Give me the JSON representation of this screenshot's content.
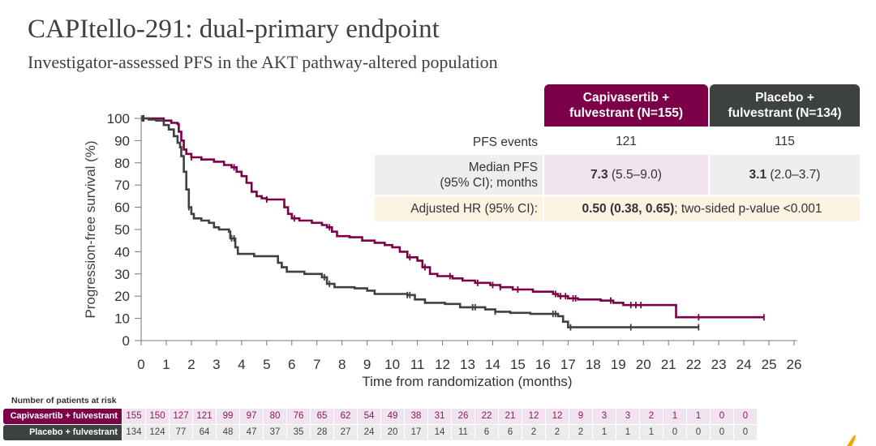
{
  "slide": {
    "title": "CAPItello-291: dual-primary endpoint",
    "subtitle": "Investigator-assessed PFS in the AKT pathway-altered population"
  },
  "colors": {
    "capivasertib": "#7b0047",
    "placebo": "#3d4140",
    "cap_tint": "#f2e4ee",
    "plc_tint": "#eeeeee",
    "hr_tint": "#fdf3e2",
    "accent_logo": "#f0a800"
  },
  "summary_table": {
    "headers": {
      "capivasertib": "Capivasertib + fulvestrant (N=155)",
      "capivasertib_line1": "Capivasertib +",
      "capivasertib_line2": "fulvestrant (N=155)",
      "placebo_line1": "Placebo +",
      "placebo_line2": "fulvestrant (N=134)"
    },
    "rows": {
      "pfs_events": {
        "label": "PFS events",
        "capivasertib": "121",
        "placebo": "115"
      },
      "median_pfs": {
        "label_line1": "Median PFS",
        "label_line2": "(95% CI); months",
        "capivasertib_bold": "7.3",
        "capivasertib_ci": " (5.5–9.0)",
        "placebo_bold": "3.1",
        "placebo_ci": " (2.0–3.7)"
      },
      "hazard_ratio": {
        "label": "Adjusted HR (95% CI):",
        "value_bold": "0.50 (0.38, 0.65)",
        "value_rest": "; two-sided p-value <0.001"
      }
    }
  },
  "at_risk": {
    "title": "Number of patients at risk",
    "capivasertib_label": "Capivasertib + fulvestrant",
    "placebo_label": "Placebo + fulvestrant",
    "capivasertib": [
      155,
      150,
      127,
      121,
      99,
      97,
      80,
      76,
      65,
      62,
      54,
      49,
      38,
      31,
      26,
      22,
      21,
      12,
      12,
      9,
      3,
      3,
      2,
      1,
      1,
      0,
      0
    ],
    "placebo": [
      134,
      124,
      77,
      64,
      48,
      47,
      37,
      35,
      28,
      27,
      24,
      20,
      17,
      14,
      11,
      6,
      6,
      2,
      2,
      2,
      1,
      1,
      1,
      0,
      0,
      0,
      0
    ]
  },
  "chart_data": {
    "type": "line",
    "subtype": "kaplan-meier step",
    "title": "",
    "xlabel": "Time from randomization (months)",
    "ylabel": "Progression-free survival (%)",
    "xlim": [
      0,
      26
    ],
    "ylim": [
      0,
      100
    ],
    "xticks": [
      0,
      1,
      2,
      3,
      4,
      5,
      6,
      7,
      8,
      9,
      10,
      11,
      12,
      13,
      14,
      15,
      16,
      17,
      18,
      19,
      20,
      21,
      22,
      23,
      24,
      25,
      26
    ],
    "yticks": [
      0,
      10,
      20,
      30,
      40,
      50,
      60,
      70,
      80,
      90,
      100
    ],
    "grid": false,
    "series": [
      {
        "name": "Capivasertib + fulvestrant",
        "color": "#7b0047",
        "points": [
          [
            0,
            100
          ],
          [
            0.6,
            100
          ],
          [
            0.9,
            99
          ],
          [
            1.2,
            98
          ],
          [
            1.45,
            97.5
          ],
          [
            1.5,
            94
          ],
          [
            1.6,
            90
          ],
          [
            1.7,
            86
          ],
          [
            1.8,
            84
          ],
          [
            2.0,
            82.5
          ],
          [
            2.4,
            81.5
          ],
          [
            2.9,
            80.5
          ],
          [
            3.3,
            79
          ],
          [
            3.6,
            78
          ],
          [
            3.8,
            76
          ],
          [
            4.0,
            74
          ],
          [
            4.2,
            71
          ],
          [
            4.4,
            67
          ],
          [
            4.6,
            65
          ],
          [
            4.8,
            64
          ],
          [
            5.0,
            63.5
          ],
          [
            5.6,
            63.5
          ],
          [
            5.7,
            60
          ],
          [
            5.85,
            57
          ],
          [
            6.0,
            55
          ],
          [
            6.3,
            54
          ],
          [
            6.8,
            53
          ],
          [
            7.2,
            52
          ],
          [
            7.4,
            51
          ],
          [
            7.6,
            49
          ],
          [
            7.8,
            47
          ],
          [
            8.3,
            46.5
          ],
          [
            8.8,
            45
          ],
          [
            9.3,
            44
          ],
          [
            9.7,
            43
          ],
          [
            10.0,
            42
          ],
          [
            10.3,
            40
          ],
          [
            10.6,
            37.5
          ],
          [
            11.0,
            36
          ],
          [
            11.2,
            33
          ],
          [
            11.5,
            30
          ],
          [
            11.8,
            29
          ],
          [
            12.4,
            28
          ],
          [
            12.8,
            27
          ],
          [
            13.3,
            26
          ],
          [
            13.9,
            25
          ],
          [
            14.3,
            24
          ],
          [
            14.8,
            23
          ],
          [
            15.6,
            22
          ],
          [
            16.4,
            21
          ],
          [
            16.6,
            20
          ],
          [
            17.0,
            19
          ],
          [
            17.4,
            18.5
          ],
          [
            18.3,
            18
          ],
          [
            18.8,
            17
          ],
          [
            19.2,
            16
          ],
          [
            20.0,
            16
          ],
          [
            21.3,
            16
          ],
          [
            21.3,
            10.5
          ],
          [
            24.8,
            10.5
          ]
        ],
        "censor_times": [
          0.1,
          2.0,
          3.7,
          5.0,
          6.1,
          7.5,
          10.7,
          11.3,
          12.3,
          13.4,
          14.0,
          14.3,
          15.0,
          16.5,
          16.7,
          16.9,
          17.2,
          17.3,
          18.7,
          19.5,
          19.7,
          19.9,
          22.2,
          24.8
        ]
      },
      {
        "name": "Placebo + fulvestrant",
        "color": "#3d4140",
        "points": [
          [
            0,
            100
          ],
          [
            0.3,
            99.5
          ],
          [
            0.6,
            99
          ],
          [
            0.9,
            97
          ],
          [
            1.1,
            95
          ],
          [
            1.3,
            92
          ],
          [
            1.45,
            89
          ],
          [
            1.55,
            87
          ],
          [
            1.6,
            83
          ],
          [
            1.7,
            76
          ],
          [
            1.8,
            68
          ],
          [
            1.9,
            60
          ],
          [
            2.0,
            57
          ],
          [
            2.1,
            55
          ],
          [
            2.4,
            54
          ],
          [
            2.7,
            53
          ],
          [
            2.9,
            51
          ],
          [
            3.1,
            50
          ],
          [
            3.5,
            49
          ],
          [
            3.55,
            46
          ],
          [
            3.75,
            42
          ],
          [
            3.85,
            39
          ],
          [
            4.5,
            38
          ],
          [
            5.3,
            38
          ],
          [
            5.45,
            35
          ],
          [
            5.6,
            33
          ],
          [
            5.8,
            31
          ],
          [
            6.5,
            30
          ],
          [
            7.2,
            28.5
          ],
          [
            7.4,
            25.5
          ],
          [
            7.7,
            24
          ],
          [
            8.5,
            23.5
          ],
          [
            9.0,
            22.5
          ],
          [
            9.3,
            21
          ],
          [
            10.6,
            20.5
          ],
          [
            10.9,
            18.5
          ],
          [
            11.3,
            17
          ],
          [
            12.1,
            16.5
          ],
          [
            12.7,
            15
          ],
          [
            13.7,
            14
          ],
          [
            14.1,
            13
          ],
          [
            14.7,
            12.5
          ],
          [
            15.5,
            12
          ],
          [
            16.6,
            11
          ],
          [
            16.8,
            8.5
          ],
          [
            17.0,
            6
          ],
          [
            22.2,
            6
          ]
        ],
        "censor_times": [
          0.05,
          1.9,
          3.6,
          3.7,
          7.3,
          7.5,
          10.6,
          10.7,
          13.2,
          13.3,
          14.1,
          16.4,
          16.5,
          17.1,
          19.5,
          22.2
        ]
      }
    ]
  }
}
